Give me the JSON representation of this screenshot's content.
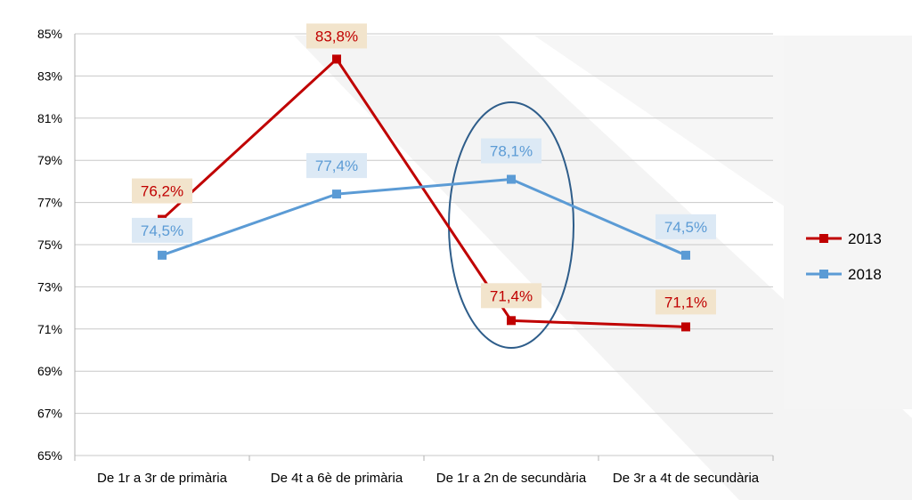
{
  "chart_data": {
    "type": "line",
    "categories": [
      "De 1r a 3r de primària",
      "De 4t a 6è de primària",
      "De 1r a 2n de secundària",
      "De 3r a 4t de secundària"
    ],
    "series": [
      {
        "name": "2013",
        "values": [
          76.2,
          83.8,
          71.4,
          71.1
        ],
        "labels": [
          "76,2%",
          "83,8%",
          "71,4%",
          "71,1%"
        ],
        "color": "#c00000",
        "label_bg": "#f2e4cc"
      },
      {
        "name": "2018",
        "values": [
          74.5,
          77.4,
          78.1,
          74.5
        ],
        "labels": [
          "74,5%",
          "77,4%",
          "78,1%",
          "74,5%"
        ],
        "color": "#5b9bd5",
        "label_bg": "#dce9f5"
      }
    ],
    "yticks": [
      65,
      67,
      69,
      71,
      73,
      75,
      77,
      79,
      81,
      83,
      85
    ],
    "ytick_labels": [
      "65%",
      "67%",
      "69%",
      "71%",
      "73%",
      "75%",
      "77%",
      "79%",
      "81%",
      "83%",
      "85%"
    ],
    "ylim": [
      65,
      85
    ],
    "grid": true,
    "legend_position": "right",
    "highlight": {
      "shape": "ellipse",
      "category": "De 1r a 2n de secundària",
      "color": "#2e5d8a"
    }
  }
}
